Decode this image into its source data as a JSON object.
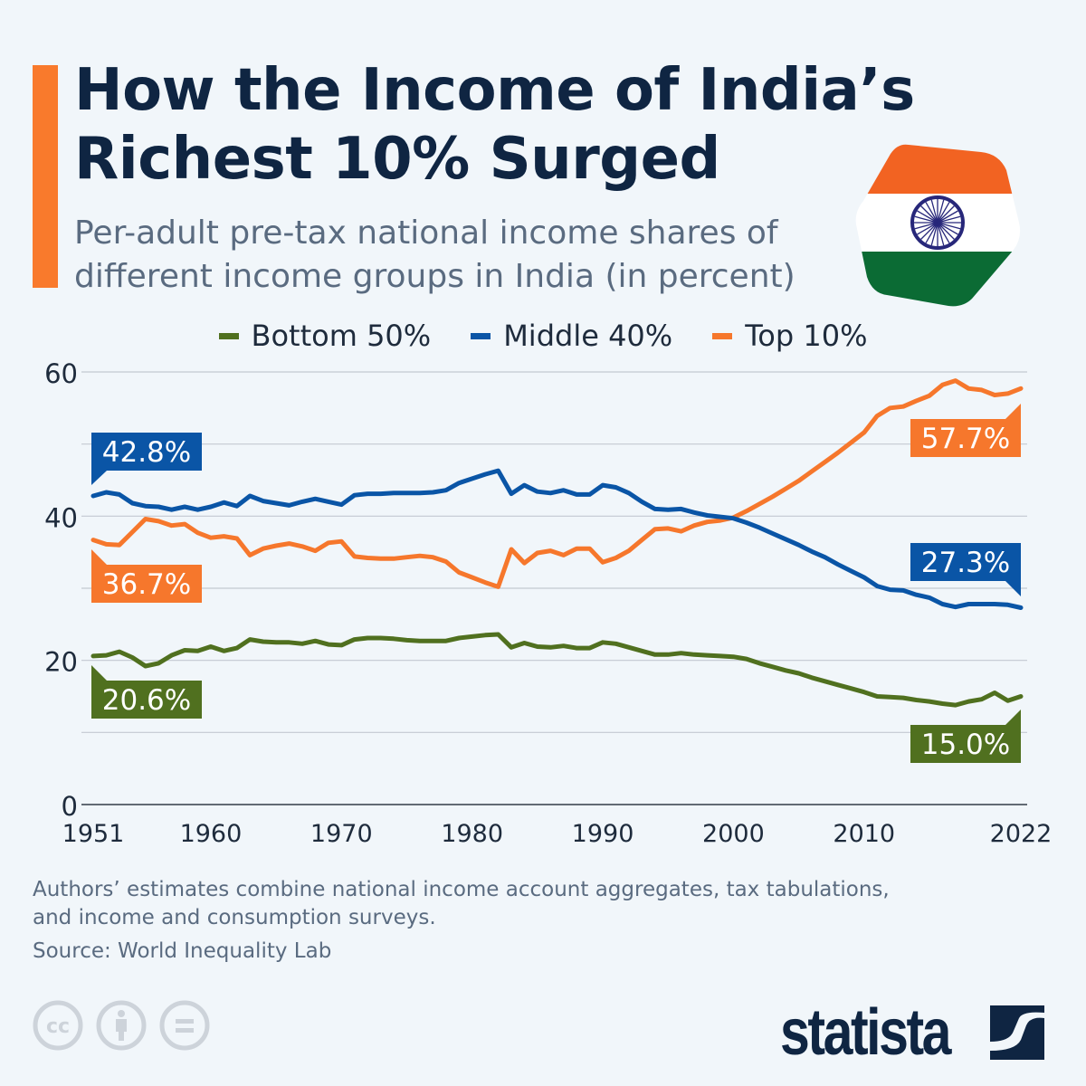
{
  "header": {
    "title": "How the Income of India’s Richest 10% Surged",
    "subtitle": "Per-adult pre-tax national income shares of different income groups in India (in percent)"
  },
  "flag_icon": "india-flag-icon",
  "footer": {
    "note": "Authors’ estimates combine national income account aggregates, tax tabulations, and income and consumption surveys.",
    "source": "Source: World Inequality Lab",
    "license_icons": [
      "creative-commons-icon",
      "attribution-icon",
      "no-derivatives-icon"
    ],
    "logo": "statista"
  },
  "chart_data": {
    "type": "line",
    "title": "How the Income of India’s Richest 10% Surged",
    "subtitle": "Per-adult pre-tax national income shares of different income groups in India (in percent)",
    "xlabel": "",
    "ylabel": "",
    "xlim": [
      1951,
      2022
    ],
    "ylim": [
      0,
      60
    ],
    "x_tick_labels": [
      "1951",
      "1960",
      "1970",
      "1980",
      "1990",
      "2000",
      "2010",
      "2022"
    ],
    "y_tick_labels": [
      "0",
      "20",
      "40",
      "60"
    ],
    "grid": true,
    "legend_position": "top-center",
    "series": [
      {
        "name": "Bottom 50%",
        "color": "#50701f",
        "start_label": "20.6%",
        "end_label": "15.0%",
        "values": [
          20.6,
          20.7,
          21.2,
          20.4,
          19.2,
          19.6,
          20.7,
          21.4,
          21.3,
          21.9,
          21.3,
          21.7,
          22.9,
          22.6,
          22.5,
          22.5,
          22.3,
          22.7,
          22.2,
          22.1,
          22.9,
          23.1,
          23.1,
          23.0,
          22.8,
          22.7,
          22.7,
          22.7,
          23.1,
          23.3,
          23.5,
          23.6,
          21.8,
          22.4,
          21.9,
          21.8,
          22.0,
          21.7,
          21.7,
          22.5,
          22.3,
          21.8,
          21.3,
          20.8,
          20.8,
          21.0,
          20.8,
          20.7,
          20.6,
          20.5,
          20.2,
          19.6,
          19.1,
          18.6,
          18.2,
          17.6,
          17.1,
          16.6,
          16.1,
          15.6,
          15.0,
          14.9,
          14.8,
          14.5,
          14.3,
          14.0,
          13.8,
          14.3,
          14.6,
          15.5,
          14.4,
          15.0
        ]
      },
      {
        "name": "Middle 40%",
        "color": "#0a55a6",
        "start_label": "42.8%",
        "end_label": "27.3%",
        "values": [
          42.8,
          43.3,
          43.0,
          41.8,
          41.4,
          41.3,
          40.9,
          41.3,
          40.9,
          41.3,
          41.9,
          41.4,
          42.8,
          42.1,
          41.8,
          41.5,
          42.0,
          42.4,
          42.0,
          41.6,
          42.9,
          43.1,
          43.1,
          43.2,
          43.2,
          43.2,
          43.3,
          43.6,
          44.6,
          45.2,
          45.8,
          46.3,
          43.1,
          44.3,
          43.4,
          43.2,
          43.6,
          43.0,
          43.0,
          44.3,
          44.0,
          43.2,
          42.0,
          41.0,
          40.9,
          41.0,
          40.5,
          40.1,
          39.9,
          39.7,
          39.1,
          38.4,
          37.6,
          36.8,
          36.0,
          35.1,
          34.3,
          33.3,
          32.4,
          31.5,
          30.3,
          29.8,
          29.7,
          29.1,
          28.7,
          27.8,
          27.4,
          27.8,
          27.8,
          27.8,
          27.7,
          27.3
        ]
      },
      {
        "name": "Top 10%",
        "color": "#f6772c",
        "start_label": "36.7%",
        "end_label": "57.7%",
        "values": [
          36.7,
          36.1,
          36.0,
          37.8,
          39.6,
          39.3,
          38.7,
          38.9,
          37.7,
          37.0,
          37.2,
          36.9,
          34.6,
          35.5,
          35.9,
          36.2,
          35.8,
          35.2,
          36.3,
          36.5,
          34.4,
          34.2,
          34.1,
          34.1,
          34.3,
          34.5,
          34.3,
          33.7,
          32.2,
          31.5,
          30.8,
          30.2,
          35.4,
          33.5,
          34.9,
          35.2,
          34.6,
          35.5,
          35.5,
          33.6,
          34.2,
          35.2,
          36.7,
          38.2,
          38.3,
          37.9,
          38.7,
          39.2,
          39.4,
          39.8,
          40.7,
          41.7,
          42.7,
          43.8,
          44.9,
          46.2,
          47.5,
          48.8,
          50.2,
          51.6,
          53.9,
          55.0,
          55.2,
          56.0,
          56.7,
          58.2,
          58.8,
          57.7,
          57.5,
          56.8,
          57.0,
          57.7
        ]
      }
    ]
  }
}
